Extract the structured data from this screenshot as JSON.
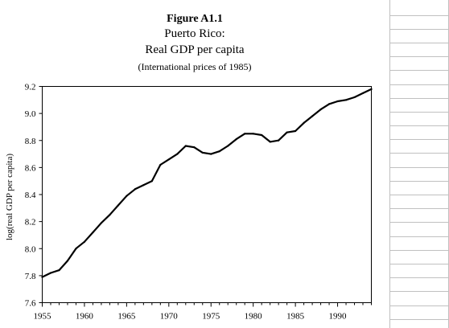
{
  "figure": {
    "heading": "Figure A1.1",
    "subtitle1": "Puerto Rico:",
    "subtitle2": "Real GDP per capita",
    "subtitle3": "(International prices of 1985)"
  },
  "chart_data": {
    "type": "line",
    "title": "Figure A1.1",
    "ylabel": "log(real GDP per capita)",
    "xlabel": "",
    "xlim": [
      1955,
      1994
    ],
    "ylim": [
      7.6,
      9.2
    ],
    "x_ticks": [
      1955,
      1960,
      1965,
      1970,
      1975,
      1980,
      1985,
      1990
    ],
    "y_ticks": [
      "7.6",
      "7.8",
      "8.0",
      "8.2",
      "8.4",
      "8.6",
      "8.8",
      "9.0",
      "9.2"
    ],
    "grid": false,
    "series": [
      {
        "color": "#000000",
        "x": [
          1955,
          1956,
          1957,
          1958,
          1959,
          1960,
          1961,
          1962,
          1963,
          1964,
          1965,
          1966,
          1967,
          1968,
          1969,
          1970,
          1971,
          1972,
          1973,
          1974,
          1975,
          1976,
          1977,
          1978,
          1979,
          1980,
          1981,
          1982,
          1983,
          1984,
          1985,
          1986,
          1987,
          1988,
          1989,
          1990,
          1991,
          1992,
          1993,
          1994
        ],
        "y": [
          7.79,
          7.82,
          7.84,
          7.91,
          8.0,
          8.05,
          8.12,
          8.19,
          8.25,
          8.32,
          8.39,
          8.44,
          8.47,
          8.5,
          8.62,
          8.66,
          8.7,
          8.76,
          8.75,
          8.71,
          8.7,
          8.72,
          8.76,
          8.81,
          8.85,
          8.85,
          8.84,
          8.79,
          8.8,
          8.86,
          8.87,
          8.93,
          8.98,
          9.03,
          9.07,
          9.09,
          9.1,
          9.12,
          9.15,
          9.18
        ]
      }
    ]
  }
}
